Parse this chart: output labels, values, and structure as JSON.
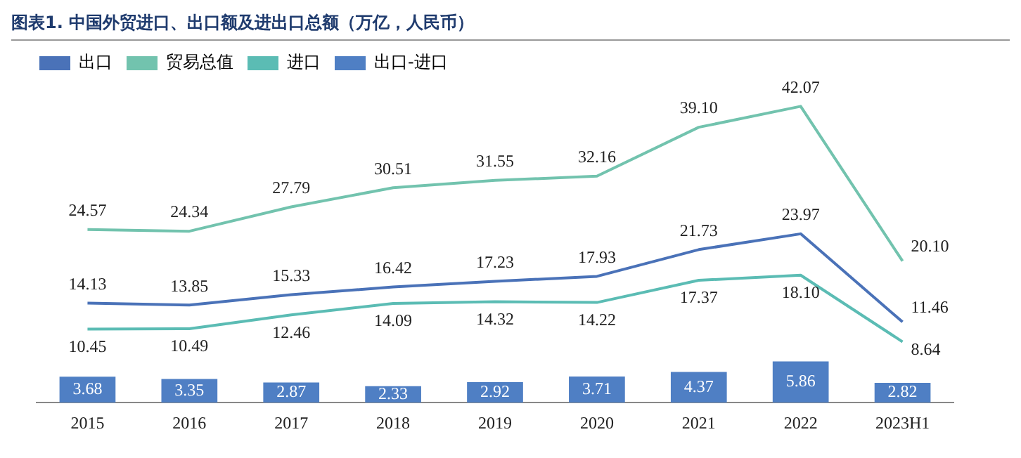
{
  "chart_data": {
    "type": "line",
    "title": "图表1. 中国外贸进口、出口额及进出口总额（万亿，人民币）",
    "categories": [
      "2015",
      "2016",
      "2017",
      "2018",
      "2019",
      "2020",
      "2021",
      "2022",
      "2023H1"
    ],
    "series": [
      {
        "name": "出口",
        "color": "#4a72b8",
        "values": [
          14.13,
          13.85,
          15.33,
          16.42,
          17.23,
          17.93,
          21.73,
          23.97,
          11.46
        ],
        "value_labels": [
          "14.13",
          "13.85",
          "15.33",
          "16.42",
          "17.23",
          "17.93",
          "21.73",
          "23.97",
          "11.46"
        ]
      },
      {
        "name": "贸易总值",
        "color": "#72c3ae",
        "values": [
          24.57,
          24.34,
          27.79,
          30.51,
          31.55,
          32.16,
          39.1,
          42.07,
          20.1
        ],
        "value_labels": [
          "24.57",
          "24.34",
          "27.79",
          "30.51",
          "31.55",
          "32.16",
          "39.10",
          "42.07",
          "20.10"
        ]
      },
      {
        "name": "进口",
        "color": "#5bbcb4",
        "values": [
          10.45,
          10.49,
          12.46,
          14.09,
          14.32,
          14.22,
          17.37,
          18.1,
          8.64
        ],
        "value_labels": [
          "10.45",
          "10.49",
          "12.46",
          "14.09",
          "14.32",
          "14.22",
          "17.37",
          "18.10",
          "8.64"
        ]
      },
      {
        "name": "出口-进口",
        "type": "bar",
        "color": "#4f7fc4",
        "values": [
          3.68,
          3.35,
          2.87,
          2.33,
          2.92,
          3.71,
          4.37,
          5.86,
          2.82
        ],
        "value_labels": [
          "3.68",
          "3.35",
          "2.87",
          "2.33",
          "2.92",
          "3.71",
          "4.37",
          "5.86",
          "2.82"
        ]
      }
    ],
    "tick_labels": "x",
    "grid": false,
    "legend": "top left",
    "marker": "none"
  }
}
